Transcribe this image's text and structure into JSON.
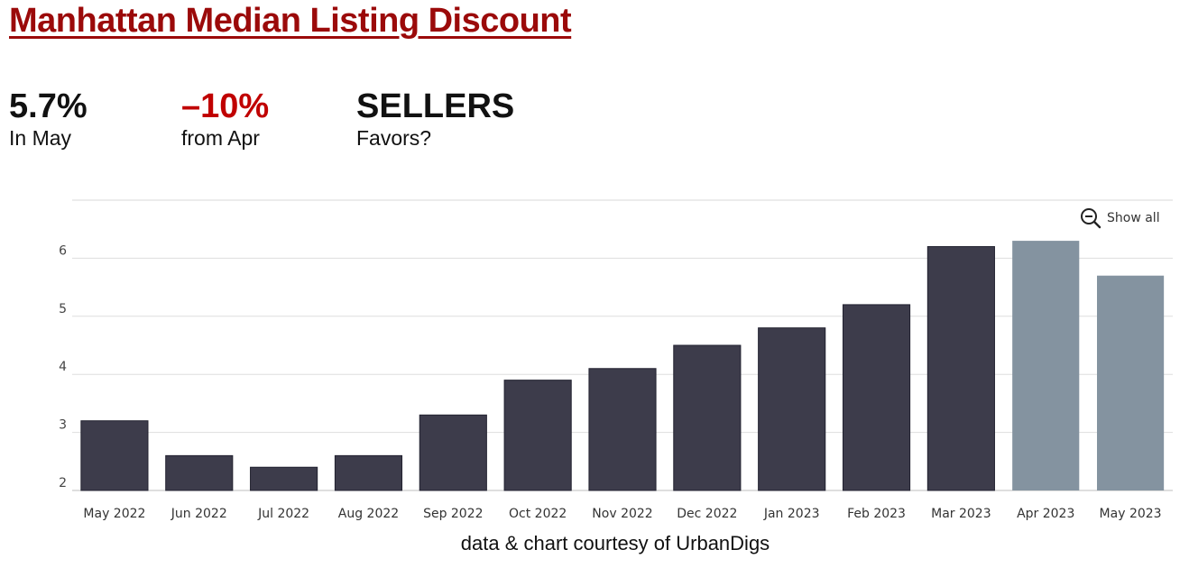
{
  "header": {
    "title": "Manhattan Median Listing Discount"
  },
  "stats": [
    {
      "value": "5.7%",
      "label": "In May"
    },
    {
      "value": "–10%",
      "label": "from Apr"
    },
    {
      "value": "SELLERS",
      "label": "Favors?"
    }
  ],
  "toolbar": {
    "show_all_label": "Show all",
    "show_all_icon": "zoom-out-icon"
  },
  "footer": {
    "credit": "data & chart courtesy of UrbanDigs"
  },
  "colors": {
    "title": "#9b0a0a",
    "negative": "#c00000",
    "bar": "#3d3c4b",
    "bar_highlight": "#8493a0"
  },
  "chart_data": {
    "type": "bar",
    "categories": [
      "May 2022",
      "Jun 2022",
      "Jul 2022",
      "Aug 2022",
      "Sep 2022",
      "Oct 2022",
      "Nov 2022",
      "Dec 2022",
      "Jan 2023",
      "Feb 2023",
      "Mar 2023",
      "Apr 2023",
      "May 2023"
    ],
    "values": [
      3.2,
      2.6,
      2.4,
      2.6,
      3.3,
      3.9,
      4.1,
      4.5,
      4.8,
      5.2,
      6.2,
      6.3,
      5.7
    ],
    "highlighted": [
      "Apr 2023",
      "May 2023"
    ],
    "yticks": [
      2,
      3,
      4,
      5,
      6
    ],
    "ylim": [
      2,
      7
    ],
    "grid": true,
    "legend": "none"
  }
}
